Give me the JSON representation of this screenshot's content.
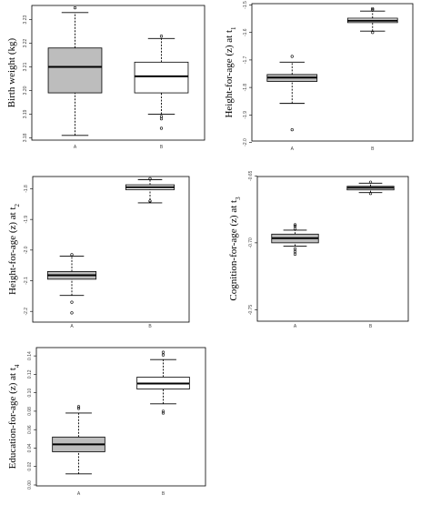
{
  "chart_data": [
    {
      "type": "boxplot",
      "ylabel": "Birth weight (kg)",
      "categories": [
        "A",
        "B"
      ],
      "ylim": [
        3.179,
        3.236
      ],
      "yticks": [
        3.18,
        3.19,
        3.2,
        3.21,
        3.22,
        3.23
      ],
      "ytick_labels": [
        "3.18",
        "3.19",
        "3.20",
        "3.21",
        "3.22",
        "3.23"
      ],
      "boxes": [
        {
          "category": "A",
          "fill": "#bdbdbd",
          "whisker_low": 3.181,
          "q1": 3.199,
          "median": 3.21,
          "q3": 3.218,
          "whisker_high": 3.233,
          "outliers": [
            3.235
          ]
        },
        {
          "category": "B",
          "fill": "#ffffff",
          "whisker_low": 3.19,
          "q1": 3.199,
          "median": 3.206,
          "q3": 3.212,
          "whisker_high": 3.222,
          "outliers": [
            3.189,
            3.188,
            3.184,
            3.223
          ]
        }
      ]
    },
    {
      "type": "boxplot",
      "ylabel": "Height-for-age (z) at t1",
      "categories": [
        "A",
        "B"
      ],
      "ylim": [
        -1.995,
        -1.495
      ],
      "yticks": [
        -2.0,
        -1.9,
        -1.8,
        -1.7,
        -1.6,
        -1.5
      ],
      "ytick_labels": [
        "-2.0",
        "-1.9",
        "-1.8",
        "-1.7",
        "-1.6",
        "-1.5"
      ],
      "boxes": [
        {
          "category": "A",
          "fill": "#bdbdbd",
          "whisker_low": -1.858,
          "q1": -1.778,
          "median": -1.764,
          "q3": -1.753,
          "whisker_high": -1.708,
          "outliers": [
            -1.687,
            -1.954
          ]
        },
        {
          "category": "B",
          "fill": "#ffffff",
          "whisker_low": -1.595,
          "q1": -1.564,
          "median": -1.557,
          "q3": -1.548,
          "whisker_high": -1.522,
          "outliers": [
            -1.6,
            -1.517,
            -1.513
          ]
        }
      ]
    },
    {
      "type": "boxplot",
      "ylabel": "Height-for-age (z) at t2",
      "categories": [
        "A",
        "B"
      ],
      "ylim": [
        -2.235,
        -1.76
      ],
      "yticks": [
        -2.2,
        -2.1,
        -2.0,
        -1.9,
        -1.8
      ],
      "ytick_labels": [
        "-2.2",
        "-2.1",
        "-2.0",
        "-1.9",
        "-1.8"
      ],
      "boxes": [
        {
          "category": "A",
          "fill": "#bdbdbd",
          "whisker_low": -2.148,
          "q1": -2.095,
          "median": -2.082,
          "q3": -2.07,
          "whisker_high": -2.02,
          "outliers": [
            -2.17,
            -2.205,
            -2.015
          ]
        },
        {
          "category": "B",
          "fill": "#ffffff",
          "whisker_low": -1.846,
          "q1": -1.803,
          "median": -1.795,
          "q3": -1.787,
          "whisker_high": -1.77,
          "outliers": [
            -1.84,
            -1.767
          ]
        }
      ]
    },
    {
      "type": "boxplot",
      "ylabel": "Cognition-for-age (z) at t3",
      "categories": [
        "A",
        "B"
      ],
      "ylim": [
        -0.7585,
        -0.6505
      ],
      "yticks": [
        -0.75,
        -0.7,
        -0.65
      ],
      "ytick_labels": [
        "-0.75",
        "-0.70",
        "-0.65"
      ],
      "boxes": [
        {
          "category": "A",
          "fill": "#bdbdbd",
          "whisker_low": -0.7025,
          "q1": -0.7,
          "median": -0.6965,
          "q3": -0.6935,
          "whisker_high": -0.6905,
          "outliers": [
            -0.7085,
            -0.7065,
            -0.7045,
            -0.6895,
            -0.6875,
            -0.6865
          ]
        },
        {
          "category": "B",
          "fill": "#ffffff",
          "whisker_low": -0.6625,
          "q1": -0.6605,
          "median": -0.6589,
          "q3": -0.6578,
          "whisker_high": -0.6555,
          "outliers": [
            -0.6632,
            -0.6547
          ]
        }
      ]
    },
    {
      "type": "boxplot",
      "ylabel": "Education-for-age (z) at t4",
      "categories": [
        "A",
        "B"
      ],
      "ylim": [
        -0.001,
        0.149
      ],
      "yticks": [
        0.0,
        0.02,
        0.04,
        0.06,
        0.08,
        0.1,
        0.12,
        0.14
      ],
      "ytick_labels": [
        "0.00",
        "0.02",
        "0.04",
        "0.06",
        "0.08",
        "0.10",
        "0.12",
        "0.14"
      ],
      "boxes": [
        {
          "category": "A",
          "fill": "#bdbdbd",
          "whisker_low": 0.012,
          "q1": 0.036,
          "median": 0.044,
          "q3": 0.052,
          "whisker_high": 0.078,
          "outliers": [
            0.083,
            0.085
          ]
        },
        {
          "category": "B",
          "fill": "#ffffff",
          "whisker_low": 0.088,
          "q1": 0.104,
          "median": 0.11,
          "q3": 0.117,
          "whisker_high": 0.136,
          "outliers": [
            0.08,
            0.078,
            0.141,
            0.144
          ]
        }
      ]
    }
  ]
}
